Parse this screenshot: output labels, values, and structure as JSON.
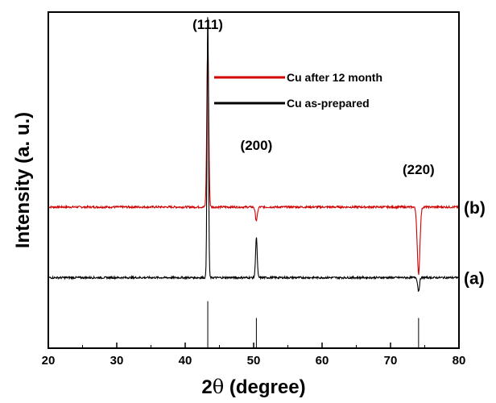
{
  "chart_data": {
    "type": "line",
    "xlabel_main": "2",
    "xlabel_theta": "θ",
    "xlabel_tail": " (degree)",
    "ylabel": "Intensity (a. u.)",
    "xlim": [
      20,
      80
    ],
    "xticks": [
      20,
      30,
      40,
      50,
      60,
      70,
      80
    ],
    "grid": false,
    "legend_position": "top-right",
    "series": [
      {
        "name": "Cu  after 12 month",
        "color": "#d00000",
        "curve_label": "(b)",
        "baseline": 0.42,
        "peaks": [
          {
            "x": 43.3,
            "height": 0.92,
            "width": 0.18
          },
          {
            "x": 50.4,
            "height": 0.38,
            "width": 0.2
          },
          {
            "x": 74.1,
            "height": 0.22,
            "width": 0.26
          }
        ]
      },
      {
        "name": "Cu as-prepared",
        "color": "#000000",
        "curve_label": "(a)",
        "baseline": 0.21,
        "peaks": [
          {
            "x": 43.3,
            "height": 1.0,
            "width": 0.14
          },
          {
            "x": 50.4,
            "height": 0.33,
            "width": 0.16
          },
          {
            "x": 74.1,
            "height": 0.17,
            "width": 0.18
          }
        ]
      }
    ],
    "reference_lines": [
      {
        "x": 43.3,
        "height": 0.14
      },
      {
        "x": 50.4,
        "height": 0.09
      },
      {
        "x": 74.1,
        "height": 0.09
      }
    ],
    "peak_labels": [
      {
        "text": "(111)",
        "x": 43.3
      },
      {
        "text": "(200)",
        "x": 50.4
      },
      {
        "text": "(220)",
        "x": 74.1
      }
    ]
  }
}
